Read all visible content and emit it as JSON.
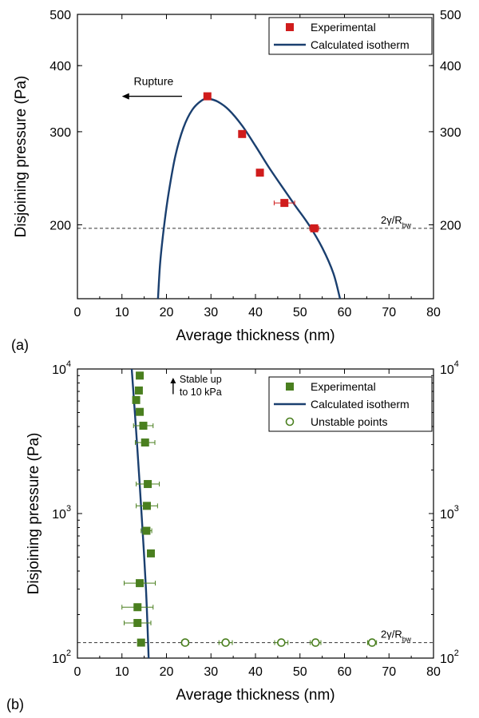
{
  "chart_data": [
    {
      "type": "scatter",
      "panel_label": "(a)",
      "xlabel": "Average thickness (nm)",
      "ylabel": "Disjoining pressure (Pa)",
      "xlim": [
        0,
        80
      ],
      "ylim": [
        145,
        500
      ],
      "yscale": "log",
      "xticks": [
        0,
        10,
        20,
        30,
        40,
        50,
        60,
        70,
        80
      ],
      "yticks": [
        200,
        300,
        400,
        500
      ],
      "mirror_right_axis": true,
      "grid": false,
      "legend_position": "top-right",
      "series": [
        {
          "name": "Experimental",
          "marker": "filled-square",
          "color": "#d01c1c",
          "points": [
            {
              "x": 29.2,
              "y": 350,
              "xerr": 0
            },
            {
              "x": 37.0,
              "y": 297,
              "xerr": 0
            },
            {
              "x": 41.0,
              "y": 251,
              "xerr": 0
            },
            {
              "x": 46.5,
              "y": 220,
              "xerr": 2.3
            },
            {
              "x": 53.2,
              "y": 197,
              "xerr": 1.0
            }
          ]
        },
        {
          "name": "Calculated isotherm",
          "style": "line",
          "color": "#1a3f6f",
          "points": [
            {
              "x": 18.1,
              "y": 145
            },
            {
              "x": 18.6,
              "y": 170
            },
            {
              "x": 19.5,
              "y": 200
            },
            {
              "x": 20.5,
              "y": 230
            },
            {
              "x": 22.0,
              "y": 270
            },
            {
              "x": 23.8,
              "y": 305
            },
            {
              "x": 25.8,
              "y": 330
            },
            {
              "x": 28.0,
              "y": 344
            },
            {
              "x": 29.5,
              "y": 346
            },
            {
              "x": 31.5,
              "y": 342
            },
            {
              "x": 34.0,
              "y": 330
            },
            {
              "x": 37.0,
              "y": 308
            },
            {
              "x": 40.0,
              "y": 282
            },
            {
              "x": 43.0,
              "y": 257
            },
            {
              "x": 46.0,
              "y": 236
            },
            {
              "x": 49.0,
              "y": 217
            },
            {
              "x": 52.0,
              "y": 200
            },
            {
              "x": 55.0,
              "y": 181
            },
            {
              "x": 57.5,
              "y": 162
            },
            {
              "x": 59.0,
              "y": 145
            }
          ]
        }
      ],
      "reference_line": {
        "y": 197,
        "style": "dashed",
        "label_base": "2γ/R",
        "label_sub": "bw"
      },
      "annotation": {
        "text": "Rupture",
        "arrow": "left",
        "x_from": 23.5,
        "x_to": 10.0,
        "y": 350
      }
    },
    {
      "type": "scatter",
      "panel_label": "(b)",
      "xlabel": "Average thickness (nm)",
      "ylabel": "Disjoining pressure (Pa)",
      "xlim": [
        0,
        80
      ],
      "ylim": [
        100,
        10000
      ],
      "yscale": "log",
      "xticks": [
        0,
        10,
        20,
        30,
        40,
        50,
        60,
        70,
        80
      ],
      "yticks": [
        {
          "base": "10",
          "exp": "2",
          "value": 100
        },
        {
          "base": "10",
          "exp": "3",
          "value": 1000
        },
        {
          "base": "10",
          "exp": "4",
          "value": 10000
        }
      ],
      "mirror_right_axis": true,
      "grid": false,
      "legend_position": "top-right",
      "series": [
        {
          "name": "Experimental",
          "marker": "filled-square",
          "color": "#4a7f1f",
          "points": [
            {
              "x": 14.0,
              "y": 9000,
              "xerr": 0
            },
            {
              "x": 13.8,
              "y": 7100,
              "xerr": 0
            },
            {
              "x": 13.2,
              "y": 6100,
              "xerr": 0
            },
            {
              "x": 14.0,
              "y": 5050,
              "xerr": 0
            },
            {
              "x": 14.8,
              "y": 4050,
              "xerr": 2.2
            },
            {
              "x": 15.2,
              "y": 3100,
              "xerr": 2.2
            },
            {
              "x": 15.8,
              "y": 1600,
              "xerr": 2.6
            },
            {
              "x": 15.6,
              "y": 1130,
              "xerr": 2.4
            },
            {
              "x": 15.5,
              "y": 760,
              "xerr": 1.2
            },
            {
              "x": 16.5,
              "y": 530,
              "xerr": 0.5
            },
            {
              "x": 14.0,
              "y": 330,
              "xerr": 3.5
            },
            {
              "x": 13.5,
              "y": 225,
              "xerr": 3.5
            },
            {
              "x": 13.5,
              "y": 175,
              "xerr": 3.0
            },
            {
              "x": 14.3,
              "y": 128,
              "xerr": 0.5
            }
          ]
        },
        {
          "name": "Calculated isotherm",
          "style": "line",
          "color": "#1a3f6f",
          "points": [
            {
              "x": 12.2,
              "y": 10000
            },
            {
              "x": 13.4,
              "y": 3000
            },
            {
              "x": 14.4,
              "y": 1000
            },
            {
              "x": 15.4,
              "y": 300
            },
            {
              "x": 16.0,
              "y": 100
            }
          ]
        },
        {
          "name": "Unstable points",
          "marker": "open-circle",
          "color": "#4a7f1f",
          "points": [
            {
              "x": 24.2,
              "y": 128,
              "xerr": 0.8
            },
            {
              "x": 33.3,
              "y": 128,
              "xerr": 1.5
            },
            {
              "x": 45.8,
              "y": 128,
              "xerr": 1.5
            },
            {
              "x": 53.5,
              "y": 128,
              "xerr": 1.2
            },
            {
              "x": 66.2,
              "y": 128,
              "xerr": 1.0
            }
          ]
        }
      ],
      "reference_line": {
        "y": 128,
        "style": "dashed",
        "label_base": "2γ/R",
        "label_sub": "bw"
      },
      "annotation": {
        "text_lines": [
          "Stable up",
          "to 10 kPa"
        ],
        "arrow": "up",
        "x": 21.5,
        "y_from": 6700,
        "y_to": 8700
      }
    }
  ]
}
